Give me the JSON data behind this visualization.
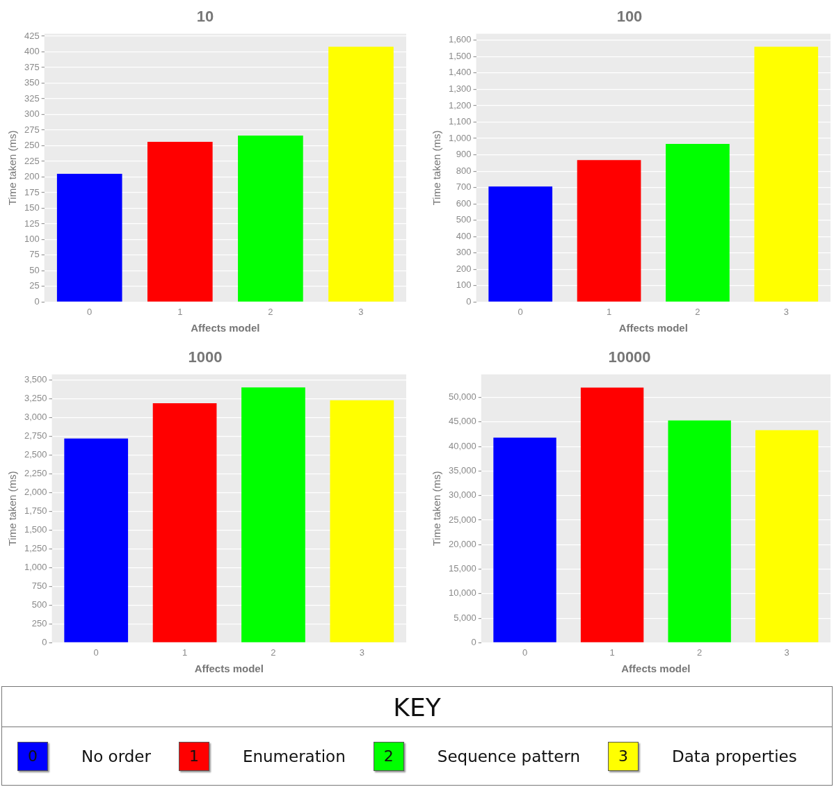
{
  "chart_data": [
    {
      "type": "bar",
      "title": "10",
      "xlabel": "Affects model",
      "ylabel": "Time taken (ms)",
      "categories": [
        "0",
        "1",
        "2",
        "3"
      ],
      "values": [
        205,
        256,
        266,
        408
      ],
      "colors": [
        "#0000ff",
        "#ff0000",
        "#00ff00",
        "#ffff00"
      ],
      "ylim": [
        0,
        429
      ],
      "yticks": [
        0,
        25,
        50,
        75,
        100,
        125,
        150,
        175,
        200,
        225,
        250,
        275,
        300,
        325,
        350,
        375,
        400,
        425
      ],
      "grid": "y",
      "legend": false
    },
    {
      "type": "bar",
      "title": "100",
      "xlabel": "Affects model",
      "ylabel": "Time taken (ms)",
      "categories": [
        "0",
        "1",
        "2",
        "3"
      ],
      "values": [
        706,
        867,
        966,
        1560
      ],
      "colors": [
        "#0000ff",
        "#ff0000",
        "#00ff00",
        "#ffff00"
      ],
      "ylim": [
        0,
        1640
      ],
      "yticks": [
        0,
        100,
        200,
        300,
        400,
        500,
        600,
        700,
        800,
        900,
        {
          "value": 1000,
          "label": "1,000"
        },
        {
          "value": 1100,
          "label": "1,100"
        },
        {
          "value": 1200,
          "label": "1,200"
        },
        {
          "value": 1300,
          "label": "1,300"
        },
        {
          "value": 1400,
          "label": "1,400"
        },
        {
          "value": 1500,
          "label": "1,500"
        },
        {
          "value": 1600,
          "label": "1,600"
        }
      ],
      "grid": "y",
      "legend": false
    },
    {
      "type": "bar",
      "title": "1000",
      "xlabel": "Affects model",
      "ylabel": "Time taken (ms)",
      "categories": [
        "0",
        "1",
        "2",
        "3"
      ],
      "values": [
        2720,
        3190,
        3400,
        3230
      ],
      "colors": [
        "#0000ff",
        "#ff0000",
        "#00ff00",
        "#ffff00"
      ],
      "ylim": [
        0,
        3575
      ],
      "yticks": [
        0,
        250,
        500,
        750,
        {
          "value": 1000,
          "label": "1,000"
        },
        {
          "value": 1250,
          "label": "1,250"
        },
        {
          "value": 1500,
          "label": "1,500"
        },
        {
          "value": 1750,
          "label": "1,750"
        },
        {
          "value": 2000,
          "label": "2,000"
        },
        {
          "value": 2250,
          "label": "2,250"
        },
        {
          "value": 2500,
          "label": "2,500"
        },
        {
          "value": 2750,
          "label": "2,750"
        },
        {
          "value": 3000,
          "label": "3,000"
        },
        {
          "value": 3250,
          "label": "3,250"
        },
        {
          "value": 3500,
          "label": "3,500"
        }
      ],
      "grid": "y",
      "legend": false
    },
    {
      "type": "bar",
      "title": "10000",
      "xlabel": "Affects model",
      "ylabel": "Time taken (ms)",
      "categories": [
        "0",
        "1",
        "2",
        "3"
      ],
      "values": [
        41800,
        52000,
        45300,
        43300
      ],
      "colors": [
        "#0000ff",
        "#ff0000",
        "#00ff00",
        "#ffff00"
      ],
      "ylim": [
        0,
        54700
      ],
      "yticks": [
        0,
        {
          "value": 5000,
          "label": "5,000"
        },
        {
          "value": 10000,
          "label": "10,000"
        },
        {
          "value": 15000,
          "label": "15,000"
        },
        {
          "value": 20000,
          "label": "20,000"
        },
        {
          "value": 25000,
          "label": "25,000"
        },
        {
          "value": 30000,
          "label": "30,000"
        },
        {
          "value": 35000,
          "label": "35,000"
        },
        {
          "value": 40000,
          "label": "40,000"
        },
        {
          "value": 45000,
          "label": "45,000"
        },
        {
          "value": 50000,
          "label": "50,000"
        }
      ],
      "grid": "y",
      "legend": false
    },
    {
      "type": "other",
      "title": "KEY",
      "annotations": [
        "0",
        "No order",
        "1",
        "Enumeration",
        "2",
        "Sequence pattern",
        "3",
        "Data properties"
      ]
    }
  ]
}
